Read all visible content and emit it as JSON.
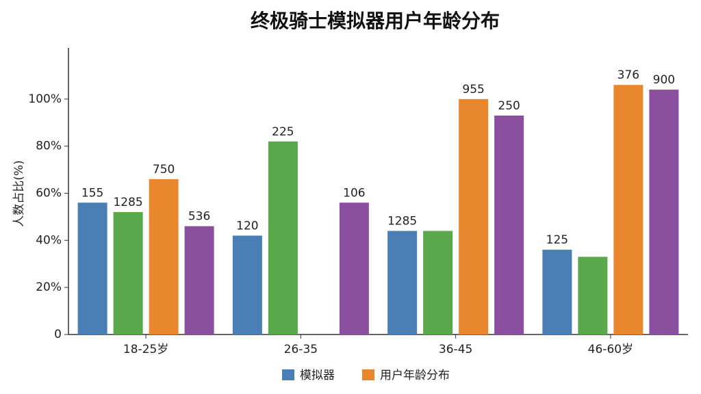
{
  "chart_data": {
    "type": "bar",
    "title": "终极骑士模拟器用户年龄分布",
    "y_label": "人数占比(%)",
    "categories": [
      "18-25岁",
      "26-35",
      "36-45",
      "46-60岁"
    ],
    "series": [
      {
        "name": "模拟器",
        "color": "#4a7fb5",
        "values": [
          56,
          42,
          44,
          36
        ],
        "value_labels": [
          "155",
          "120",
          "1285",
          "125"
        ]
      },
      {
        "color": "#59a84b",
        "values": [
          52,
          82,
          44,
          33
        ],
        "value_labels": [
          "1285",
          "225",
          null,
          null
        ]
      },
      {
        "name": "用户年龄分布",
        "color": "#e8872d",
        "values": [
          66,
          0,
          100,
          106
        ],
        "value_labels": [
          "750",
          null,
          "955",
          "376"
        ]
      },
      {
        "color": "#8b4fa0",
        "values": [
          46,
          56,
          93,
          104
        ],
        "value_labels": [
          "536",
          "106",
          "250",
          "900"
        ]
      }
    ],
    "ylim": [
      0,
      120
    ],
    "yticks": [
      0,
      {
        "value": 20,
        "label": "20%"
      },
      {
        "value": 40,
        "label": "40%"
      },
      {
        "value": 60,
        "label": "60%"
      },
      {
        "value": 80,
        "label": "80%"
      },
      {
        "value": 100,
        "label": "100%"
      }
    ],
    "legend": "bottom"
  }
}
